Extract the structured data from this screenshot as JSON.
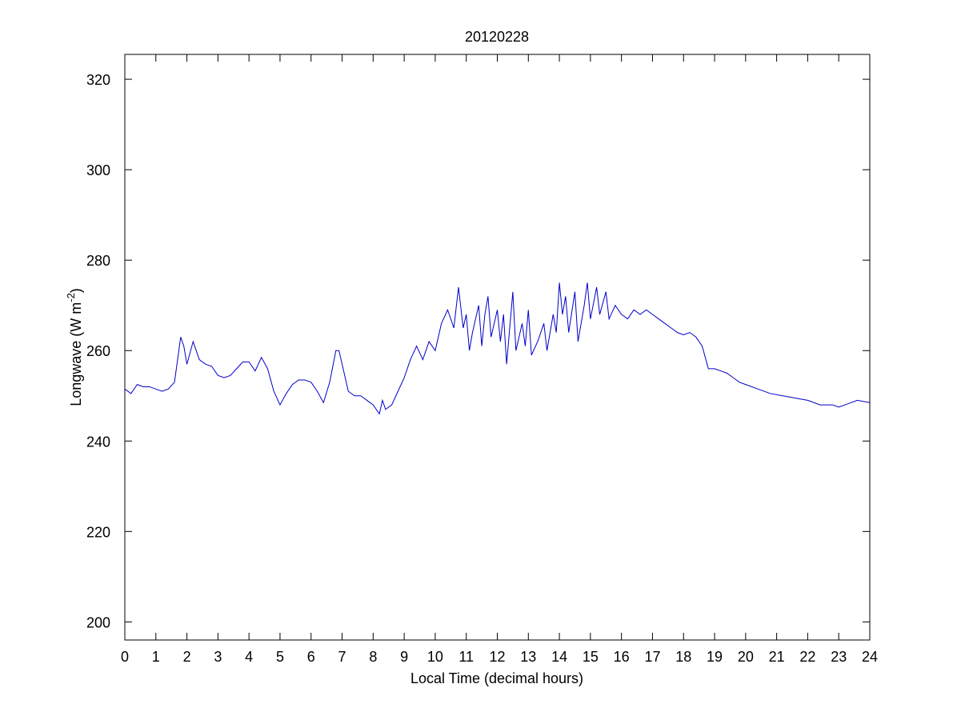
{
  "chart_data": {
    "type": "line",
    "title": "20120228",
    "xlabel": "Local Time (decimal hours)",
    "ylabel": {
      "text": "Longwave (W m",
      "superscript": "-2",
      "tail": ")"
    },
    "color": "#0000c8",
    "x": [
      0,
      0.2,
      0.4,
      0.6,
      0.8,
      1.0,
      1.2,
      1.4,
      1.6,
      1.8,
      1.9,
      2.0,
      2.2,
      2.4,
      2.6,
      2.8,
      3.0,
      3.2,
      3.4,
      3.6,
      3.8,
      4.0,
      4.2,
      4.4,
      4.6,
      4.8,
      5.0,
      5.2,
      5.4,
      5.6,
      5.8,
      6.0,
      6.2,
      6.4,
      6.6,
      6.8,
      6.9,
      7.0,
      7.2,
      7.4,
      7.6,
      7.8,
      8.0,
      8.2,
      8.3,
      8.4,
      8.6,
      8.8,
      9.0,
      9.2,
      9.4,
      9.6,
      9.8,
      10.0,
      10.2,
      10.4,
      10.6,
      10.75,
      10.9,
      11.0,
      11.1,
      11.2,
      11.4,
      11.5,
      11.6,
      11.7,
      11.8,
      12.0,
      12.1,
      12.2,
      12.3,
      12.4,
      12.5,
      12.6,
      12.8,
      12.9,
      13.0,
      13.1,
      13.3,
      13.5,
      13.6,
      13.8,
      13.9,
      14.0,
      14.1,
      14.2,
      14.3,
      14.5,
      14.6,
      14.8,
      14.9,
      15.0,
      15.2,
      15.3,
      15.5,
      15.6,
      15.8,
      16.0,
      16.2,
      16.4,
      16.6,
      16.8,
      17.0,
      17.2,
      17.4,
      17.6,
      17.8,
      18.0,
      18.2,
      18.4,
      18.6,
      18.8,
      19.0,
      19.2,
      19.4,
      19.6,
      19.8,
      20.0,
      20.4,
      20.8,
      21.2,
      21.6,
      22.0,
      22.4,
      22.8,
      23.0,
      23.2,
      23.6,
      24.0
    ],
    "values": [
      251.5,
      250.5,
      252.5,
      252,
      252,
      251.5,
      251,
      251.5,
      253,
      263,
      261,
      257,
      262,
      258,
      257,
      256.5,
      254.5,
      254,
      254.5,
      256,
      257.5,
      257.5,
      255.5,
      258.5,
      256,
      251,
      248,
      250.5,
      252.5,
      253.5,
      253.5,
      253,
      251,
      248.5,
      253,
      260,
      260,
      257,
      251,
      250,
      250,
      249,
      248,
      246,
      249,
      247,
      248,
      251,
      254,
      258,
      261,
      258,
      262,
      260,
      266,
      269,
      265,
      274,
      265,
      268,
      260,
      264,
      270,
      261,
      268,
      272,
      263,
      269,
      262,
      268,
      257,
      265,
      273,
      260,
      266,
      261,
      269,
      259,
      262,
      266,
      260,
      268,
      264,
      275,
      268,
      272,
      264,
      273,
      262,
      270,
      275,
      267,
      274,
      268,
      273,
      267,
      270,
      268,
      267,
      269,
      268,
      269,
      268,
      267,
      266,
      265,
      264,
      263.5,
      264,
      263,
      261,
      256,
      256,
      255.5,
      255,
      254,
      253,
      252.5,
      251.5,
      250.5,
      250,
      249.5,
      249,
      248,
      248,
      247.5,
      248,
      249,
      248.5
    ],
    "xlim": [
      0,
      24
    ],
    "ylim": [
      196,
      325.5
    ],
    "xticks": [
      0,
      1,
      2,
      3,
      4,
      5,
      6,
      7,
      8,
      9,
      10,
      11,
      12,
      13,
      14,
      15,
      16,
      17,
      18,
      19,
      20,
      21,
      22,
      23,
      24
    ],
    "yticks": [
      200,
      220,
      240,
      260,
      280,
      300,
      320
    ]
  }
}
